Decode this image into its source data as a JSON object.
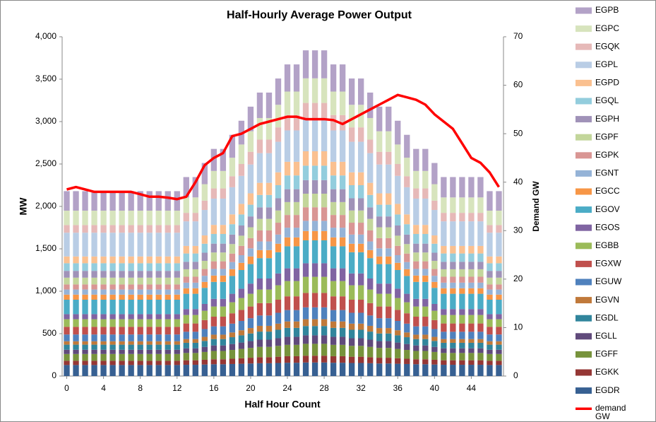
{
  "chart_data": {
    "type": "bar",
    "stacked": true,
    "title": "Half-Hourly Average Power Output",
    "x_label": "Half Hour Count",
    "y_label": "MW",
    "y2_label": "Demand GW",
    "x": [
      0,
      1,
      2,
      3,
      4,
      5,
      6,
      7,
      8,
      9,
      10,
      11,
      12,
      13,
      14,
      15,
      16,
      17,
      18,
      19,
      20,
      21,
      22,
      23,
      24,
      25,
      26,
      27,
      28,
      29,
      30,
      31,
      32,
      33,
      34,
      35,
      36,
      37,
      38,
      39,
      40,
      41,
      42,
      43,
      44,
      45,
      46,
      47
    ],
    "xlim": [
      -0.5,
      47.5
    ],
    "xticks": [
      0,
      4,
      8,
      12,
      16,
      20,
      24,
      28,
      32,
      36,
      40,
      44
    ],
    "ylim": [
      0,
      4000
    ],
    "yticks": [
      0,
      500,
      {
        "value": 1000,
        "label": "1,000"
      },
      {
        "value": 1500,
        "label": "1,500"
      },
      {
        "value": 2000,
        "label": "2,000"
      },
      {
        "value": 2500,
        "label": "2,500"
      },
      {
        "value": 3000,
        "label": "3,000"
      },
      {
        "value": 3500,
        "label": "3,500"
      },
      {
        "value": 4000,
        "label": "4,000"
      }
    ],
    "y2lim": [
      0,
      70
    ],
    "y2ticks": [
      0,
      10,
      20,
      30,
      40,
      50,
      60,
      70
    ],
    "grid": false,
    "legend": "right",
    "series": [
      {
        "name": "EGDR",
        "color": "#376092",
        "values": [
          130,
          130,
          130,
          130,
          130,
          130,
          130,
          130,
          130,
          130,
          130,
          130,
          130,
          133,
          133,
          136,
          139,
          139,
          142,
          145,
          148,
          151,
          151,
          154,
          157,
          157,
          160,
          160,
          160,
          157,
          157,
          154,
          154,
          151,
          148,
          148,
          145,
          142,
          139,
          139,
          136,
          133,
          133,
          133,
          133,
          133,
          130,
          130
        ]
      },
      {
        "name": "EGKK",
        "color": "#953735",
        "values": [
          50,
          50,
          50,
          50,
          50,
          50,
          50,
          50,
          50,
          50,
          50,
          50,
          50,
          53,
          53,
          56,
          59,
          59,
          62,
          65,
          68,
          71,
          71,
          74,
          77,
          77,
          80,
          80,
          80,
          77,
          77,
          74,
          74,
          71,
          68,
          68,
          65,
          62,
          59,
          59,
          56,
          53,
          53,
          53,
          53,
          53,
          50,
          50
        ]
      },
      {
        "name": "EGFF",
        "color": "#77933c",
        "values": [
          80,
          80,
          80,
          80,
          80,
          80,
          80,
          80,
          80,
          80,
          80,
          80,
          80,
          86,
          86,
          92,
          98,
          98,
          104,
          110,
          116,
          122,
          122,
          128,
          134,
          134,
          140,
          140,
          140,
          134,
          134,
          128,
          128,
          122,
          116,
          116,
          110,
          104,
          98,
          98,
          92,
          86,
          86,
          86,
          86,
          86,
          80,
          80
        ]
      },
      {
        "name": "EGLL",
        "color": "#604a7b",
        "values": [
          50,
          50,
          50,
          50,
          50,
          50,
          50,
          50,
          50,
          50,
          50,
          50,
          50,
          55,
          55,
          60,
          65,
          65,
          70,
          75,
          80,
          85,
          85,
          90,
          95,
          95,
          100,
          100,
          100,
          95,
          95,
          90,
          90,
          85,
          80,
          80,
          75,
          70,
          65,
          65,
          60,
          55,
          55,
          55,
          55,
          55,
          50,
          50
        ]
      },
      {
        "name": "EGDL",
        "color": "#31859c",
        "values": [
          60,
          60,
          60,
          60,
          60,
          60,
          60,
          60,
          60,
          60,
          60,
          60,
          60,
          65,
          65,
          70,
          75,
          75,
          80,
          85,
          90,
          95,
          95,
          100,
          105,
          105,
          110,
          110,
          110,
          105,
          105,
          100,
          100,
          95,
          90,
          90,
          85,
          80,
          75,
          75,
          70,
          65,
          65,
          65,
          65,
          65,
          60,
          60
        ]
      },
      {
        "name": "EGVN",
        "color": "#c0793a",
        "values": [
          40,
          40,
          40,
          40,
          40,
          40,
          40,
          40,
          40,
          40,
          40,
          40,
          40,
          44,
          44,
          48,
          52,
          52,
          56,
          60,
          64,
          68,
          68,
          72,
          76,
          76,
          80,
          80,
          80,
          76,
          76,
          72,
          72,
          68,
          64,
          64,
          60,
          56,
          52,
          52,
          48,
          44,
          44,
          44,
          44,
          44,
          40,
          40
        ]
      },
      {
        "name": "EGUW",
        "color": "#4f81bd",
        "values": [
          80,
          80,
          80,
          80,
          80,
          80,
          80,
          80,
          80,
          80,
          80,
          80,
          80,
          86,
          86,
          92,
          98,
          98,
          104,
          110,
          116,
          122,
          122,
          128,
          134,
          134,
          140,
          140,
          140,
          134,
          134,
          128,
          128,
          122,
          116,
          116,
          110,
          104,
          98,
          98,
          92,
          86,
          86,
          86,
          86,
          86,
          80,
          80
        ]
      },
      {
        "name": "EGXW",
        "color": "#c0504d",
        "values": [
          90,
          90,
          90,
          90,
          90,
          90,
          90,
          90,
          90,
          90,
          90,
          90,
          90,
          98,
          98,
          106,
          114,
          114,
          122,
          130,
          138,
          146,
          146,
          154,
          162,
          162,
          170,
          170,
          170,
          162,
          162,
          154,
          154,
          146,
          138,
          138,
          130,
          122,
          114,
          114,
          106,
          98,
          98,
          98,
          98,
          98,
          90,
          90
        ]
      },
      {
        "name": "EGBB",
        "color": "#9bbb59",
        "values": [
          90,
          90,
          90,
          90,
          90,
          90,
          90,
          90,
          90,
          90,
          90,
          90,
          90,
          100,
          100,
          110,
          120,
          120,
          130,
          140,
          150,
          160,
          160,
          170,
          180,
          180,
          190,
          190,
          190,
          180,
          180,
          170,
          170,
          160,
          150,
          150,
          140,
          130,
          120,
          120,
          110,
          100,
          100,
          100,
          100,
          100,
          90,
          90
        ]
      },
      {
        "name": "EGOS",
        "color": "#8064a2",
        "values": [
          60,
          60,
          60,
          60,
          60,
          60,
          60,
          60,
          60,
          60,
          60,
          60,
          60,
          70,
          70,
          80,
          90,
          90,
          100,
          110,
          120,
          130,
          130,
          140,
          150,
          150,
          160,
          160,
          160,
          150,
          150,
          140,
          140,
          130,
          120,
          120,
          110,
          100,
          90,
          90,
          80,
          70,
          70,
          70,
          70,
          70,
          60,
          60
        ]
      },
      {
        "name": "EGOV",
        "color": "#4bacc6",
        "values": [
          170,
          170,
          170,
          170,
          170,
          170,
          170,
          170,
          170,
          170,
          170,
          170,
          170,
          180,
          180,
          190,
          200,
          200,
          210,
          220,
          230,
          240,
          240,
          250,
          260,
          260,
          270,
          270,
          270,
          260,
          260,
          250,
          250,
          240,
          230,
          230,
          220,
          210,
          200,
          200,
          190,
          180,
          180,
          180,
          180,
          180,
          170,
          170
        ]
      },
      {
        "name": "EGCC",
        "color": "#f79646",
        "values": [
          60,
          60,
          60,
          60,
          60,
          60,
          60,
          60,
          60,
          60,
          60,
          60,
          60,
          65,
          65,
          70,
          75,
          75,
          80,
          85,
          90,
          95,
          95,
          100,
          105,
          105,
          110,
          110,
          110,
          105,
          105,
          100,
          100,
          95,
          90,
          90,
          85,
          80,
          75,
          75,
          70,
          65,
          65,
          65,
          65,
          65,
          60,
          60
        ]
      },
      {
        "name": "EGNT",
        "color": "#95b3d7",
        "values": [
          60,
          60,
          60,
          60,
          60,
          60,
          60,
          60,
          60,
          60,
          60,
          60,
          60,
          66,
          66,
          72,
          78,
          78,
          84,
          90,
          96,
          102,
          102,
          108,
          114,
          114,
          120,
          120,
          120,
          114,
          114,
          108,
          108,
          102,
          96,
          96,
          90,
          84,
          78,
          78,
          72,
          66,
          66,
          66,
          66,
          66,
          60,
          60
        ]
      },
      {
        "name": "EGPK",
        "color": "#d99694",
        "values": [
          60,
          60,
          60,
          60,
          60,
          60,
          60,
          60,
          60,
          60,
          60,
          60,
          60,
          70,
          70,
          80,
          90,
          90,
          100,
          110,
          120,
          130,
          130,
          140,
          150,
          150,
          160,
          160,
          160,
          150,
          150,
          140,
          140,
          130,
          120,
          120,
          110,
          100,
          90,
          90,
          80,
          70,
          70,
          70,
          70,
          70,
          60,
          60
        ]
      },
      {
        "name": "EGPF",
        "color": "#c3d69b",
        "values": [
          80,
          80,
          80,
          80,
          80,
          80,
          80,
          80,
          80,
          80,
          80,
          80,
          80,
          88,
          88,
          96,
          104,
          104,
          112,
          120,
          128,
          136,
          136,
          144,
          152,
          152,
          160,
          160,
          160,
          152,
          152,
          144,
          144,
          136,
          128,
          128,
          120,
          112,
          104,
          104,
          96,
          88,
          88,
          88,
          88,
          88,
          80,
          80
        ]
      },
      {
        "name": "EGPH",
        "color": "#a092b8",
        "values": [
          80,
          80,
          80,
          80,
          80,
          80,
          80,
          80,
          80,
          80,
          80,
          80,
          80,
          88,
          88,
          96,
          104,
          104,
          112,
          120,
          128,
          136,
          136,
          144,
          152,
          152,
          160,
          160,
          160,
          152,
          152,
          144,
          144,
          136,
          128,
          128,
          120,
          112,
          104,
          104,
          96,
          88,
          88,
          88,
          88,
          88,
          80,
          80
        ]
      },
      {
        "name": "EGQL",
        "color": "#93cddd",
        "values": [
          90,
          90,
          90,
          90,
          90,
          90,
          90,
          90,
          90,
          90,
          90,
          90,
          90,
          98,
          98,
          106,
          114,
          114,
          122,
          130,
          138,
          146,
          146,
          154,
          162,
          162,
          170,
          170,
          170,
          162,
          162,
          154,
          154,
          146,
          138,
          138,
          130,
          122,
          114,
          114,
          106,
          98,
          98,
          98,
          98,
          98,
          90,
          90
        ]
      },
      {
        "name": "EGPD",
        "color": "#fac090",
        "values": [
          80,
          80,
          80,
          80,
          80,
          80,
          80,
          80,
          80,
          80,
          80,
          80,
          80,
          89,
          89,
          98,
          107,
          107,
          116,
          125,
          134,
          143,
          143,
          152,
          161,
          161,
          170,
          170,
          170,
          161,
          161,
          152,
          152,
          143,
          134,
          134,
          125,
          116,
          107,
          107,
          98,
          89,
          89,
          89,
          89,
          89,
          80,
          80
        ]
      },
      {
        "name": "EGPL",
        "color": "#b9cde5",
        "values": [
          280,
          280,
          280,
          280,
          280,
          280,
          280,
          280,
          280,
          280,
          280,
          280,
          280,
          290,
          290,
          300,
          310,
          310,
          320,
          330,
          340,
          350,
          350,
          360,
          370,
          370,
          380,
          380,
          380,
          370,
          370,
          360,
          360,
          350,
          340,
          340,
          330,
          320,
          310,
          310,
          300,
          290,
          290,
          290,
          290,
          290,
          280,
          280
        ]
      },
      {
        "name": "EGQK",
        "color": "#e6b9b8",
        "values": [
          90,
          90,
          90,
          90,
          90,
          90,
          90,
          90,
          90,
          90,
          90,
          90,
          90,
          100,
          100,
          110,
          120,
          120,
          130,
          140,
          150,
          160,
          160,
          170,
          180,
          180,
          190,
          190,
          190,
          180,
          180,
          170,
          170,
          160,
          150,
          150,
          140,
          130,
          120,
          120,
          110,
          100,
          100,
          100,
          100,
          100,
          90,
          90
        ]
      },
      {
        "name": "EGPC",
        "color": "#d7e4bd",
        "values": [
          170,
          170,
          170,
          170,
          170,
          170,
          170,
          170,
          170,
          170,
          170,
          170,
          170,
          182,
          182,
          194,
          206,
          206,
          218,
          230,
          242,
          254,
          254,
          266,
          278,
          278,
          290,
          290,
          290,
          278,
          278,
          266,
          266,
          254,
          242,
          242,
          230,
          218,
          206,
          206,
          194,
          182,
          182,
          182,
          182,
          182,
          170,
          170
        ]
      },
      {
        "name": "EGPB",
        "color": "#b3a2c7",
        "values": [
          230,
          230,
          230,
          230,
          230,
          230,
          230,
          230,
          230,
          230,
          230,
          230,
          230,
          240,
          240,
          250,
          260,
          260,
          270,
          280,
          290,
          300,
          300,
          310,
          320,
          320,
          330,
          330,
          330,
          320,
          320,
          310,
          310,
          300,
          290,
          290,
          280,
          270,
          260,
          260,
          250,
          240,
          240,
          240,
          240,
          240,
          230,
          230
        ]
      },
      {
        "name": "demand GW",
        "type": "line",
        "axis": "y2",
        "color": "#ff0000",
        "values": [
          38.5,
          39,
          38.5,
          38,
          38,
          38,
          38,
          38,
          37.5,
          37,
          37,
          36.8,
          36.5,
          37,
          40,
          43.5,
          45,
          46,
          49.5,
          50,
          51,
          52,
          52.5,
          53,
          53.5,
          53.5,
          53,
          53,
          53,
          52.8,
          52,
          53,
          54,
          55,
          56,
          57,
          58,
          57.5,
          57,
          56,
          54,
          52.5,
          51,
          48,
          45,
          44,
          42,
          39
        ]
      }
    ]
  }
}
